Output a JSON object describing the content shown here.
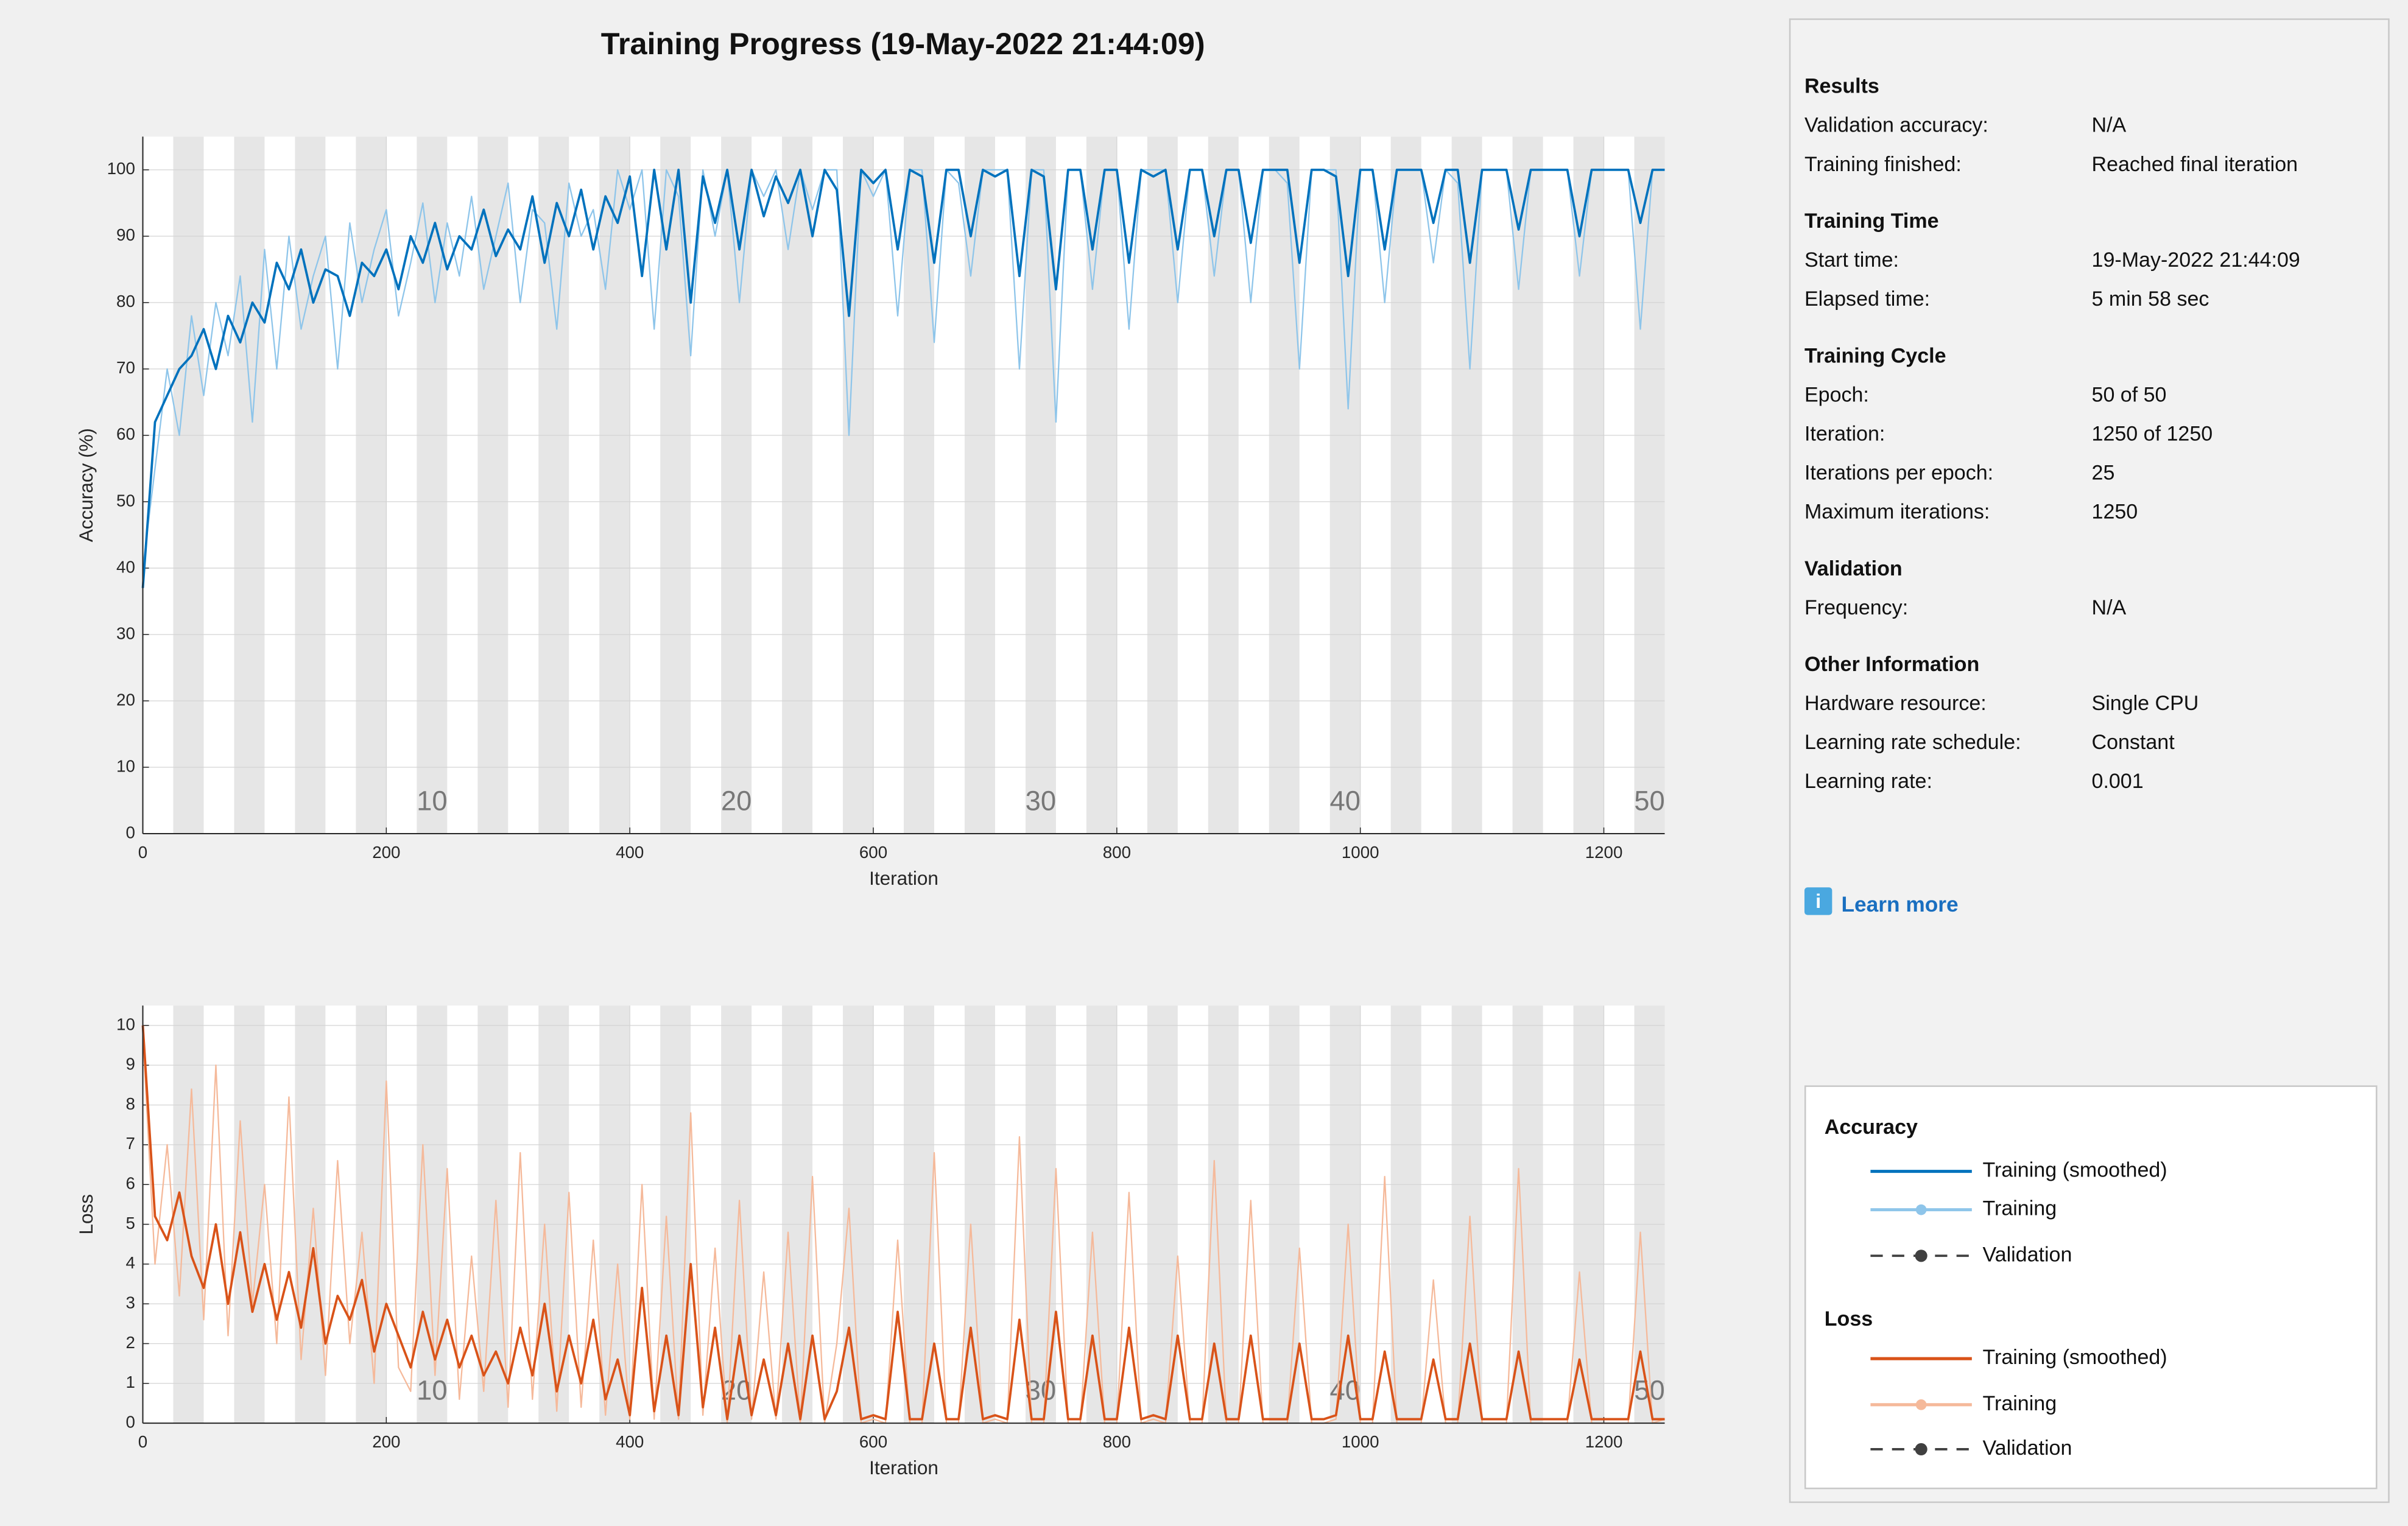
{
  "title": "Training Progress (19-May-2022 21:44:09)",
  "chart_data": [
    {
      "type": "line",
      "ylabel": "Accuracy (%)",
      "xlabel": "Iteration",
      "legend_title": "Accuracy",
      "validation_name": "Validation",
      "grid": true,
      "xlim": [
        0,
        1250
      ],
      "ylim": [
        0,
        105
      ],
      "xticks": [
        0,
        200,
        400,
        600,
        800,
        1000,
        1200
      ],
      "yticks": [
        0,
        10,
        20,
        30,
        40,
        50,
        60,
        70,
        80,
        90,
        100
      ],
      "epoch_labels": [
        10,
        20,
        30,
        40,
        50
      ],
      "x": [
        0,
        10,
        20,
        30,
        40,
        50,
        60,
        70,
        80,
        90,
        100,
        110,
        120,
        130,
        140,
        150,
        160,
        170,
        180,
        190,
        200,
        210,
        220,
        230,
        240,
        250,
        260,
        270,
        280,
        290,
        300,
        310,
        320,
        330,
        340,
        350,
        360,
        370,
        380,
        390,
        400,
        410,
        420,
        430,
        440,
        450,
        460,
        470,
        480,
        490,
        500,
        510,
        520,
        530,
        540,
        550,
        560,
        570,
        580,
        590,
        600,
        610,
        620,
        630,
        640,
        650,
        660,
        670,
        680,
        690,
        700,
        710,
        720,
        730,
        740,
        750,
        760,
        770,
        780,
        790,
        800,
        810,
        820,
        830,
        840,
        850,
        860,
        870,
        880,
        890,
        900,
        910,
        920,
        930,
        940,
        950,
        960,
        970,
        980,
        990,
        1000,
        1010,
        1020,
        1030,
        1040,
        1050,
        1060,
        1070,
        1080,
        1090,
        1100,
        1110,
        1120,
        1130,
        1140,
        1150,
        1160,
        1170,
        1180,
        1190,
        1200,
        1210,
        1220,
        1230,
        1240,
        1250
      ],
      "series": [
        {
          "name": "Training",
          "color": "#8ec5ea",
          "values": [
            40,
            55,
            70,
            60,
            78,
            66,
            80,
            72,
            84,
            62,
            88,
            70,
            90,
            76,
            84,
            90,
            70,
            92,
            80,
            88,
            94,
            78,
            86,
            95,
            80,
            92,
            84,
            96,
            82,
            90,
            98,
            80,
            94,
            92,
            76,
            98,
            90,
            94,
            82,
            100,
            94,
            100,
            76,
            100,
            96,
            72,
            100,
            90,
            100,
            80,
            100,
            96,
            100,
            88,
            100,
            94,
            100,
            100,
            60,
            100,
            96,
            100,
            78,
            100,
            100,
            74,
            100,
            98,
            84,
            100,
            100,
            100,
            70,
            100,
            100,
            62,
            100,
            100,
            82,
            100,
            100,
            76,
            100,
            100,
            100,
            80,
            100,
            100,
            84,
            100,
            100,
            80,
            100,
            100,
            98,
            70,
            100,
            100,
            100,
            64,
            100,
            100,
            80,
            100,
            100,
            100,
            86,
            100,
            98,
            70,
            100,
            100,
            100,
            82,
            100,
            100,
            100,
            100,
            84,
            100,
            100,
            100,
            100,
            76,
            100,
            100
          ]
        },
        {
          "name": "Training (smoothed)",
          "color": "#0072bd",
          "values": [
            37,
            62,
            66,
            70,
            72,
            76,
            70,
            78,
            74,
            80,
            77,
            86,
            82,
            88,
            80,
            85,
            84,
            78,
            86,
            84,
            88,
            82,
            90,
            86,
            92,
            85,
            90,
            88,
            94,
            87,
            91,
            88,
            96,
            86,
            95,
            90,
            97,
            88,
            96,
            92,
            99,
            84,
            100,
            88,
            100,
            80,
            99,
            92,
            100,
            88,
            100,
            93,
            99,
            95,
            100,
            90,
            100,
            97,
            78,
            100,
            98,
            100,
            88,
            100,
            99,
            86,
            100,
            100,
            90,
            100,
            99,
            100,
            84,
            100,
            99,
            82,
            100,
            100,
            88,
            100,
            100,
            86,
            100,
            99,
            100,
            88,
            100,
            100,
            90,
            100,
            100,
            89,
            100,
            100,
            100,
            86,
            100,
            100,
            99,
            84,
            100,
            100,
            88,
            100,
            100,
            100,
            92,
            100,
            100,
            86,
            100,
            100,
            100,
            91,
            100,
            100,
            100,
            100,
            90,
            100,
            100,
            100,
            100,
            92,
            100,
            100
          ]
        }
      ]
    },
    {
      "type": "line",
      "ylabel": "Loss",
      "xlabel": "Iteration",
      "legend_title": "Loss",
      "validation_name": "Validation",
      "grid": true,
      "xlim": [
        0,
        1250
      ],
      "ylim": [
        0,
        10.5
      ],
      "xticks": [
        0,
        200,
        400,
        600,
        800,
        1000,
        1200
      ],
      "yticks": [
        0,
        1,
        2,
        3,
        4,
        5,
        6,
        7,
        8,
        9,
        10
      ],
      "epoch_labels": [
        10,
        20,
        30,
        40,
        50
      ],
      "x": [
        0,
        10,
        20,
        30,
        40,
        50,
        60,
        70,
        80,
        90,
        100,
        110,
        120,
        130,
        140,
        150,
        160,
        170,
        180,
        190,
        200,
        210,
        220,
        230,
        240,
        250,
        260,
        270,
        280,
        290,
        300,
        310,
        320,
        330,
        340,
        350,
        360,
        370,
        380,
        390,
        400,
        410,
        420,
        430,
        440,
        450,
        460,
        470,
        480,
        490,
        500,
        510,
        520,
        530,
        540,
        550,
        560,
        570,
        580,
        590,
        600,
        610,
        620,
        630,
        640,
        650,
        660,
        670,
        680,
        690,
        700,
        710,
        720,
        730,
        740,
        750,
        760,
        770,
        780,
        790,
        800,
        810,
        820,
        830,
        840,
        850,
        860,
        870,
        880,
        890,
        900,
        910,
        920,
        930,
        940,
        950,
        960,
        970,
        980,
        990,
        1000,
        1010,
        1020,
        1030,
        1040,
        1050,
        1060,
        1070,
        1080,
        1090,
        1100,
        1110,
        1120,
        1130,
        1140,
        1150,
        1160,
        1170,
        1180,
        1190,
        1200,
        1210,
        1220,
        1230,
        1240,
        1250
      ],
      "series": [
        {
          "name": "Training",
          "color": "#f5b99a",
          "values": [
            9.8,
            4.0,
            7.0,
            3.2,
            8.4,
            2.6,
            9.0,
            2.2,
            7.6,
            3.0,
            6.0,
            2.0,
            8.2,
            1.6,
            5.4,
            1.2,
            6.6,
            2.0,
            4.8,
            1.0,
            8.6,
            1.4,
            0.8,
            7.0,
            1.2,
            6.4,
            0.6,
            4.2,
            0.8,
            5.6,
            0.4,
            6.8,
            0.6,
            5.0,
            0.3,
            5.8,
            0.4,
            4.6,
            0.2,
            4.0,
            0.1,
            6.0,
            0.1,
            5.2,
            0.1,
            7.8,
            0.2,
            4.4,
            0.0,
            5.6,
            0.1,
            3.8,
            0.1,
            4.8,
            0.0,
            6.2,
            0.0,
            2.0,
            5.4,
            0.0,
            0.1,
            0.0,
            4.6,
            0.0,
            0.0,
            6.8,
            0.0,
            0.0,
            5.0,
            0.0,
            0.1,
            0.0,
            7.2,
            0.0,
            0.0,
            6.4,
            0.0,
            0.0,
            4.8,
            0.0,
            0.0,
            5.8,
            0.0,
            0.1,
            0.0,
            4.2,
            0.0,
            0.0,
            6.6,
            0.0,
            0.0,
            5.6,
            0.0,
            0.0,
            0.0,
            4.4,
            0.0,
            0.0,
            0.1,
            5.0,
            0.0,
            0.0,
            6.2,
            0.0,
            0.0,
            0.0,
            3.6,
            0.0,
            0.0,
            5.2,
            0.0,
            0.0,
            0.0,
            6.4,
            0.0,
            0.0,
            0.0,
            0.0,
            3.8,
            0.0,
            0.0,
            0.0,
            0.0,
            4.8,
            0.0,
            0.1
          ]
        },
        {
          "name": "Training (smoothed)",
          "color": "#d95319",
          "values": [
            10,
            5.2,
            4.6,
            5.8,
            4.2,
            3.4,
            5.0,
            3.0,
            4.8,
            2.8,
            4.0,
            2.6,
            3.8,
            2.4,
            4.4,
            2.0,
            3.2,
            2.6,
            3.6,
            1.8,
            3.0,
            2.2,
            1.4,
            2.8,
            1.6,
            2.6,
            1.4,
            2.2,
            1.2,
            1.8,
            1.0,
            2.4,
            1.2,
            3.0,
            0.8,
            2.2,
            1.0,
            2.6,
            0.6,
            1.6,
            0.2,
            3.4,
            0.3,
            2.2,
            0.2,
            4.0,
            0.4,
            2.4,
            0.1,
            2.2,
            0.2,
            1.6,
            0.2,
            2.0,
            0.1,
            2.2,
            0.1,
            0.8,
            2.4,
            0.1,
            0.2,
            0.1,
            2.8,
            0.1,
            0.1,
            2.0,
            0.1,
            0.1,
            2.4,
            0.1,
            0.2,
            0.1,
            2.6,
            0.1,
            0.1,
            2.8,
            0.1,
            0.1,
            2.2,
            0.1,
            0.1,
            2.4,
            0.1,
            0.2,
            0.1,
            2.2,
            0.1,
            0.1,
            2.0,
            0.1,
            0.1,
            2.2,
            0.1,
            0.1,
            0.1,
            2.0,
            0.1,
            0.1,
            0.2,
            2.2,
            0.1,
            0.1,
            1.8,
            0.1,
            0.1,
            0.1,
            1.6,
            0.1,
            0.1,
            2.0,
            0.1,
            0.1,
            0.1,
            1.8,
            0.1,
            0.1,
            0.1,
            0.1,
            1.6,
            0.1,
            0.1,
            0.1,
            0.1,
            1.8,
            0.1,
            0.1
          ]
        }
      ]
    }
  ],
  "panel": {
    "sections": [
      {
        "heading": "Results",
        "rows": [
          [
            "Validation accuracy:",
            "N/A"
          ],
          [
            "Training finished:",
            "Reached final iteration"
          ]
        ]
      },
      {
        "heading": "Training Time",
        "rows": [
          [
            "Start time:",
            "19-May-2022 21:44:09"
          ],
          [
            "Elapsed time:",
            "5 min 58 sec"
          ]
        ]
      },
      {
        "heading": "Training Cycle",
        "rows": [
          [
            "Epoch:",
            "50 of 50"
          ],
          [
            "Iteration:",
            "1250 of 1250"
          ],
          [
            "Iterations per epoch:",
            "25"
          ],
          [
            "Maximum iterations:",
            "1250"
          ]
        ]
      },
      {
        "heading": "Validation",
        "rows": [
          [
            "Frequency:",
            "N/A"
          ]
        ]
      },
      {
        "heading": "Other Information",
        "rows": [
          [
            "Hardware resource:",
            "Single CPU"
          ],
          [
            "Learning rate schedule:",
            "Constant"
          ],
          [
            "Learning rate:",
            "0.001"
          ]
        ]
      }
    ],
    "learn_more": "Learn more"
  }
}
